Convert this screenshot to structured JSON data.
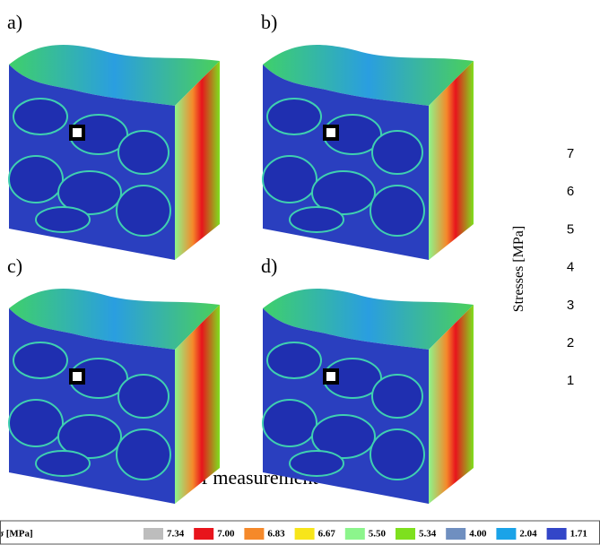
{
  "panels": [
    {
      "label": "a)"
    },
    {
      "label": "b)"
    },
    {
      "label": "c)"
    },
    {
      "label": "d)"
    }
  ],
  "side_axis": {
    "label": "Stresses [MPa]",
    "ticks": [
      "7",
      "6",
      "5",
      "4",
      "3",
      "2",
      "1"
    ]
  },
  "marker_legend": {
    "text": "- point of measurement"
  },
  "color_scale": {
    "title": "σ [MPa]",
    "items": [
      {
        "label": "7.34",
        "color": "#bdbdbd"
      },
      {
        "label": "7.00",
        "color": "#e8141c"
      },
      {
        "label": "6.83",
        "color": "#f5892a"
      },
      {
        "label": "6.67",
        "color": "#f7e51a"
      },
      {
        "label": "5.50",
        "color": "#8cf58c"
      },
      {
        "label": "5.34",
        "color": "#7ee01e"
      },
      {
        "label": "4.00",
        "color": "#6f8fc0"
      },
      {
        "label": "2.04",
        "color": "#1aa3e8"
      },
      {
        "label": "1.71",
        "color": "#3346c8"
      }
    ]
  }
}
